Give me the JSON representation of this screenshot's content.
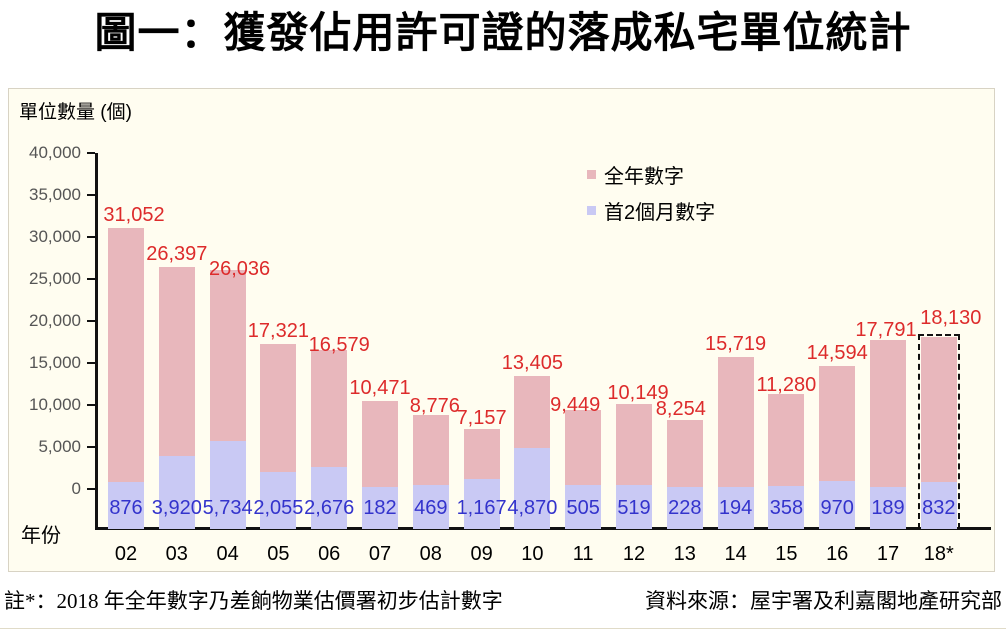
{
  "title": "圖一：獲發佔用許可證的落成私宅單位統計",
  "chart_data": {
    "type": "bar",
    "title": "圖一：獲發佔用許可證的落成私宅單位統計",
    "y_axis_title": "單位數量 (個)",
    "x_axis_title": "年份",
    "categories": [
      "02",
      "03",
      "04",
      "05",
      "06",
      "07",
      "08",
      "09",
      "10",
      "11",
      "12",
      "13",
      "14",
      "15",
      "16",
      "17",
      "18*"
    ],
    "series": [
      {
        "name": "全年數字",
        "color": "#e8b7bc",
        "label_color": "#dd2b2b",
        "values": [
          31052,
          26397,
          26036,
          17321,
          16579,
          10471,
          8776,
          7157,
          13405,
          9449,
          10149,
          8254,
          15719,
          11280,
          14594,
          17791,
          18130
        ],
        "labels": [
          "31,052",
          "26,397",
          "26,036",
          "17,321",
          "16,579",
          "10,471",
          "8,776",
          "7,157",
          "13,405",
          "9,449",
          "10,149",
          "8,254",
          "15,719",
          "11,280",
          "14,594",
          "17,791",
          "18,130"
        ]
      },
      {
        "name": "首2個月數字",
        "color": "#c9c9f4",
        "label_color": "#3333cc",
        "values": [
          876,
          3920,
          5734,
          2055,
          2676,
          182,
          469,
          1167,
          4870,
          505,
          519,
          228,
          194,
          358,
          970,
          189,
          832
        ],
        "labels": [
          "876",
          "3,920",
          "5,734",
          "2,055",
          "2,676",
          "182",
          "469",
          "1,167",
          "4,870",
          "505",
          "519",
          "228",
          "194",
          "358",
          "970",
          "189",
          "832"
        ]
      }
    ],
    "ylim": [
      0,
      40000
    ],
    "y_ticks": [
      "0",
      "5,000",
      "10,000",
      "15,000",
      "20,000",
      "25,000",
      "30,000",
      "35,000",
      "40,000"
    ],
    "grid": false,
    "legend_position": "top-right",
    "last_bar_style": "dashed-outline-preliminary-estimate"
  },
  "footer": {
    "note": "註*：2018 年全年數字乃差餉物業估價署初步估計數字",
    "source": "資料來源：屋宇署及利嘉閣地產研究部"
  }
}
